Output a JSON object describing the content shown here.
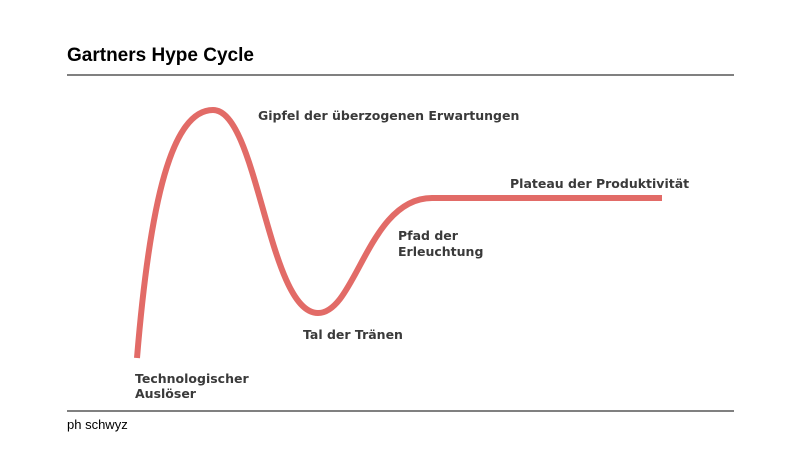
{
  "header": {
    "title": "Gartners Hype Cycle"
  },
  "diagram": {
    "labels": [
      {
        "lines": [
          "Technologischer",
          "Auslöser"
        ]
      },
      {
        "lines": [
          "Gipfel der überzogenen Erwartungen"
        ]
      },
      {
        "lines": [
          "Tal der Tränen"
        ]
      },
      {
        "lines": [
          "Pfad der",
          "Erleuchtung"
        ]
      },
      {
        "lines": [
          "Plateau der Produktivität"
        ]
      }
    ]
  },
  "footer": {
    "text": "ph schwyz"
  }
}
